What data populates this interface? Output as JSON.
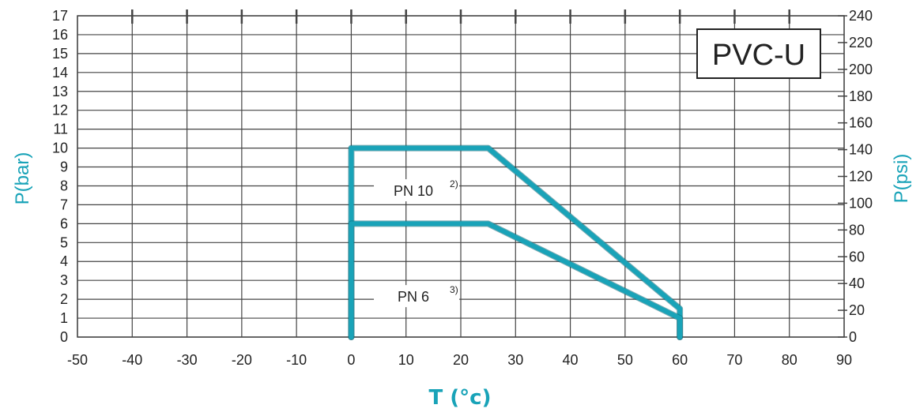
{
  "chart_data": {
    "type": "line",
    "material_label": "PVC-U",
    "xlabel": "T (°c)",
    "ylabel_left": "P(bar)",
    "ylabel_right": "P(psi)",
    "xlim": [
      -50,
      90
    ],
    "ylim": [
      0,
      17
    ],
    "y2lim": [
      0,
      240
    ],
    "x_ticks": [
      -50,
      -40,
      -30,
      -20,
      -10,
      0,
      10,
      20,
      30,
      40,
      50,
      60,
      70,
      80,
      90
    ],
    "y_ticks": [
      0,
      1,
      2,
      3,
      4,
      5,
      6,
      7,
      8,
      9,
      10,
      11,
      12,
      13,
      14,
      15,
      16,
      17
    ],
    "y2_ticks": [
      0,
      20,
      40,
      60,
      80,
      100,
      120,
      140,
      160,
      180,
      200,
      220,
      240
    ],
    "grid": true,
    "line_color": "#19a3b8",
    "series": [
      {
        "name": "PN 10",
        "note": "2)",
        "x": [
          0,
          0,
          25,
          60,
          60
        ],
        "y": [
          0,
          10,
          10,
          1.5,
          0
        ]
      },
      {
        "name": "PN 6",
        "note": "3)",
        "x": [
          0,
          0,
          25,
          60,
          60
        ],
        "y": [
          0,
          6,
          6,
          1,
          0
        ]
      }
    ]
  }
}
